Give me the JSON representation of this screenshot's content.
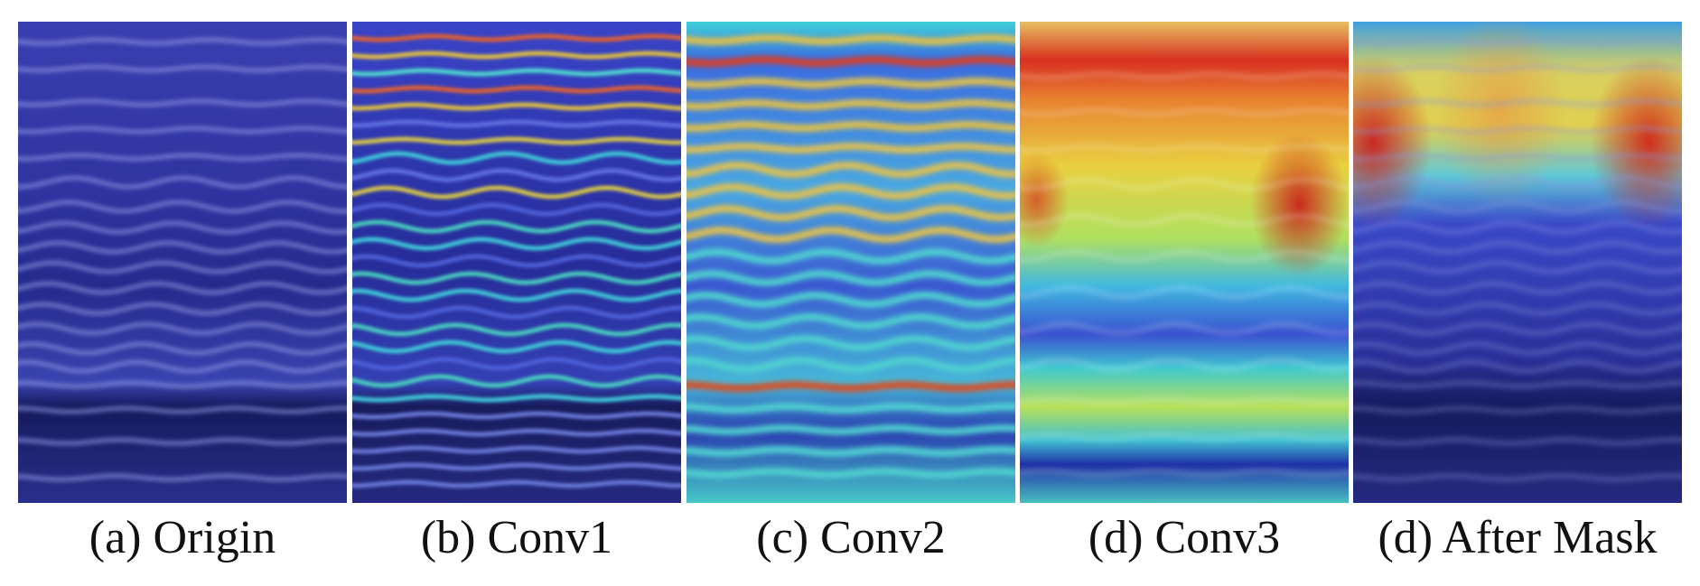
{
  "figure": {
    "panels": [
      {
        "caption": "(a) Origin",
        "kind": "origin"
      },
      {
        "caption": "(b) Conv1",
        "kind": "conv1"
      },
      {
        "caption": "(c) Conv2",
        "kind": "conv2"
      },
      {
        "caption": "(d) Conv3",
        "kind": "conv3"
      },
      {
        "caption": "(d) After Mask",
        "kind": "mask"
      }
    ]
  }
}
